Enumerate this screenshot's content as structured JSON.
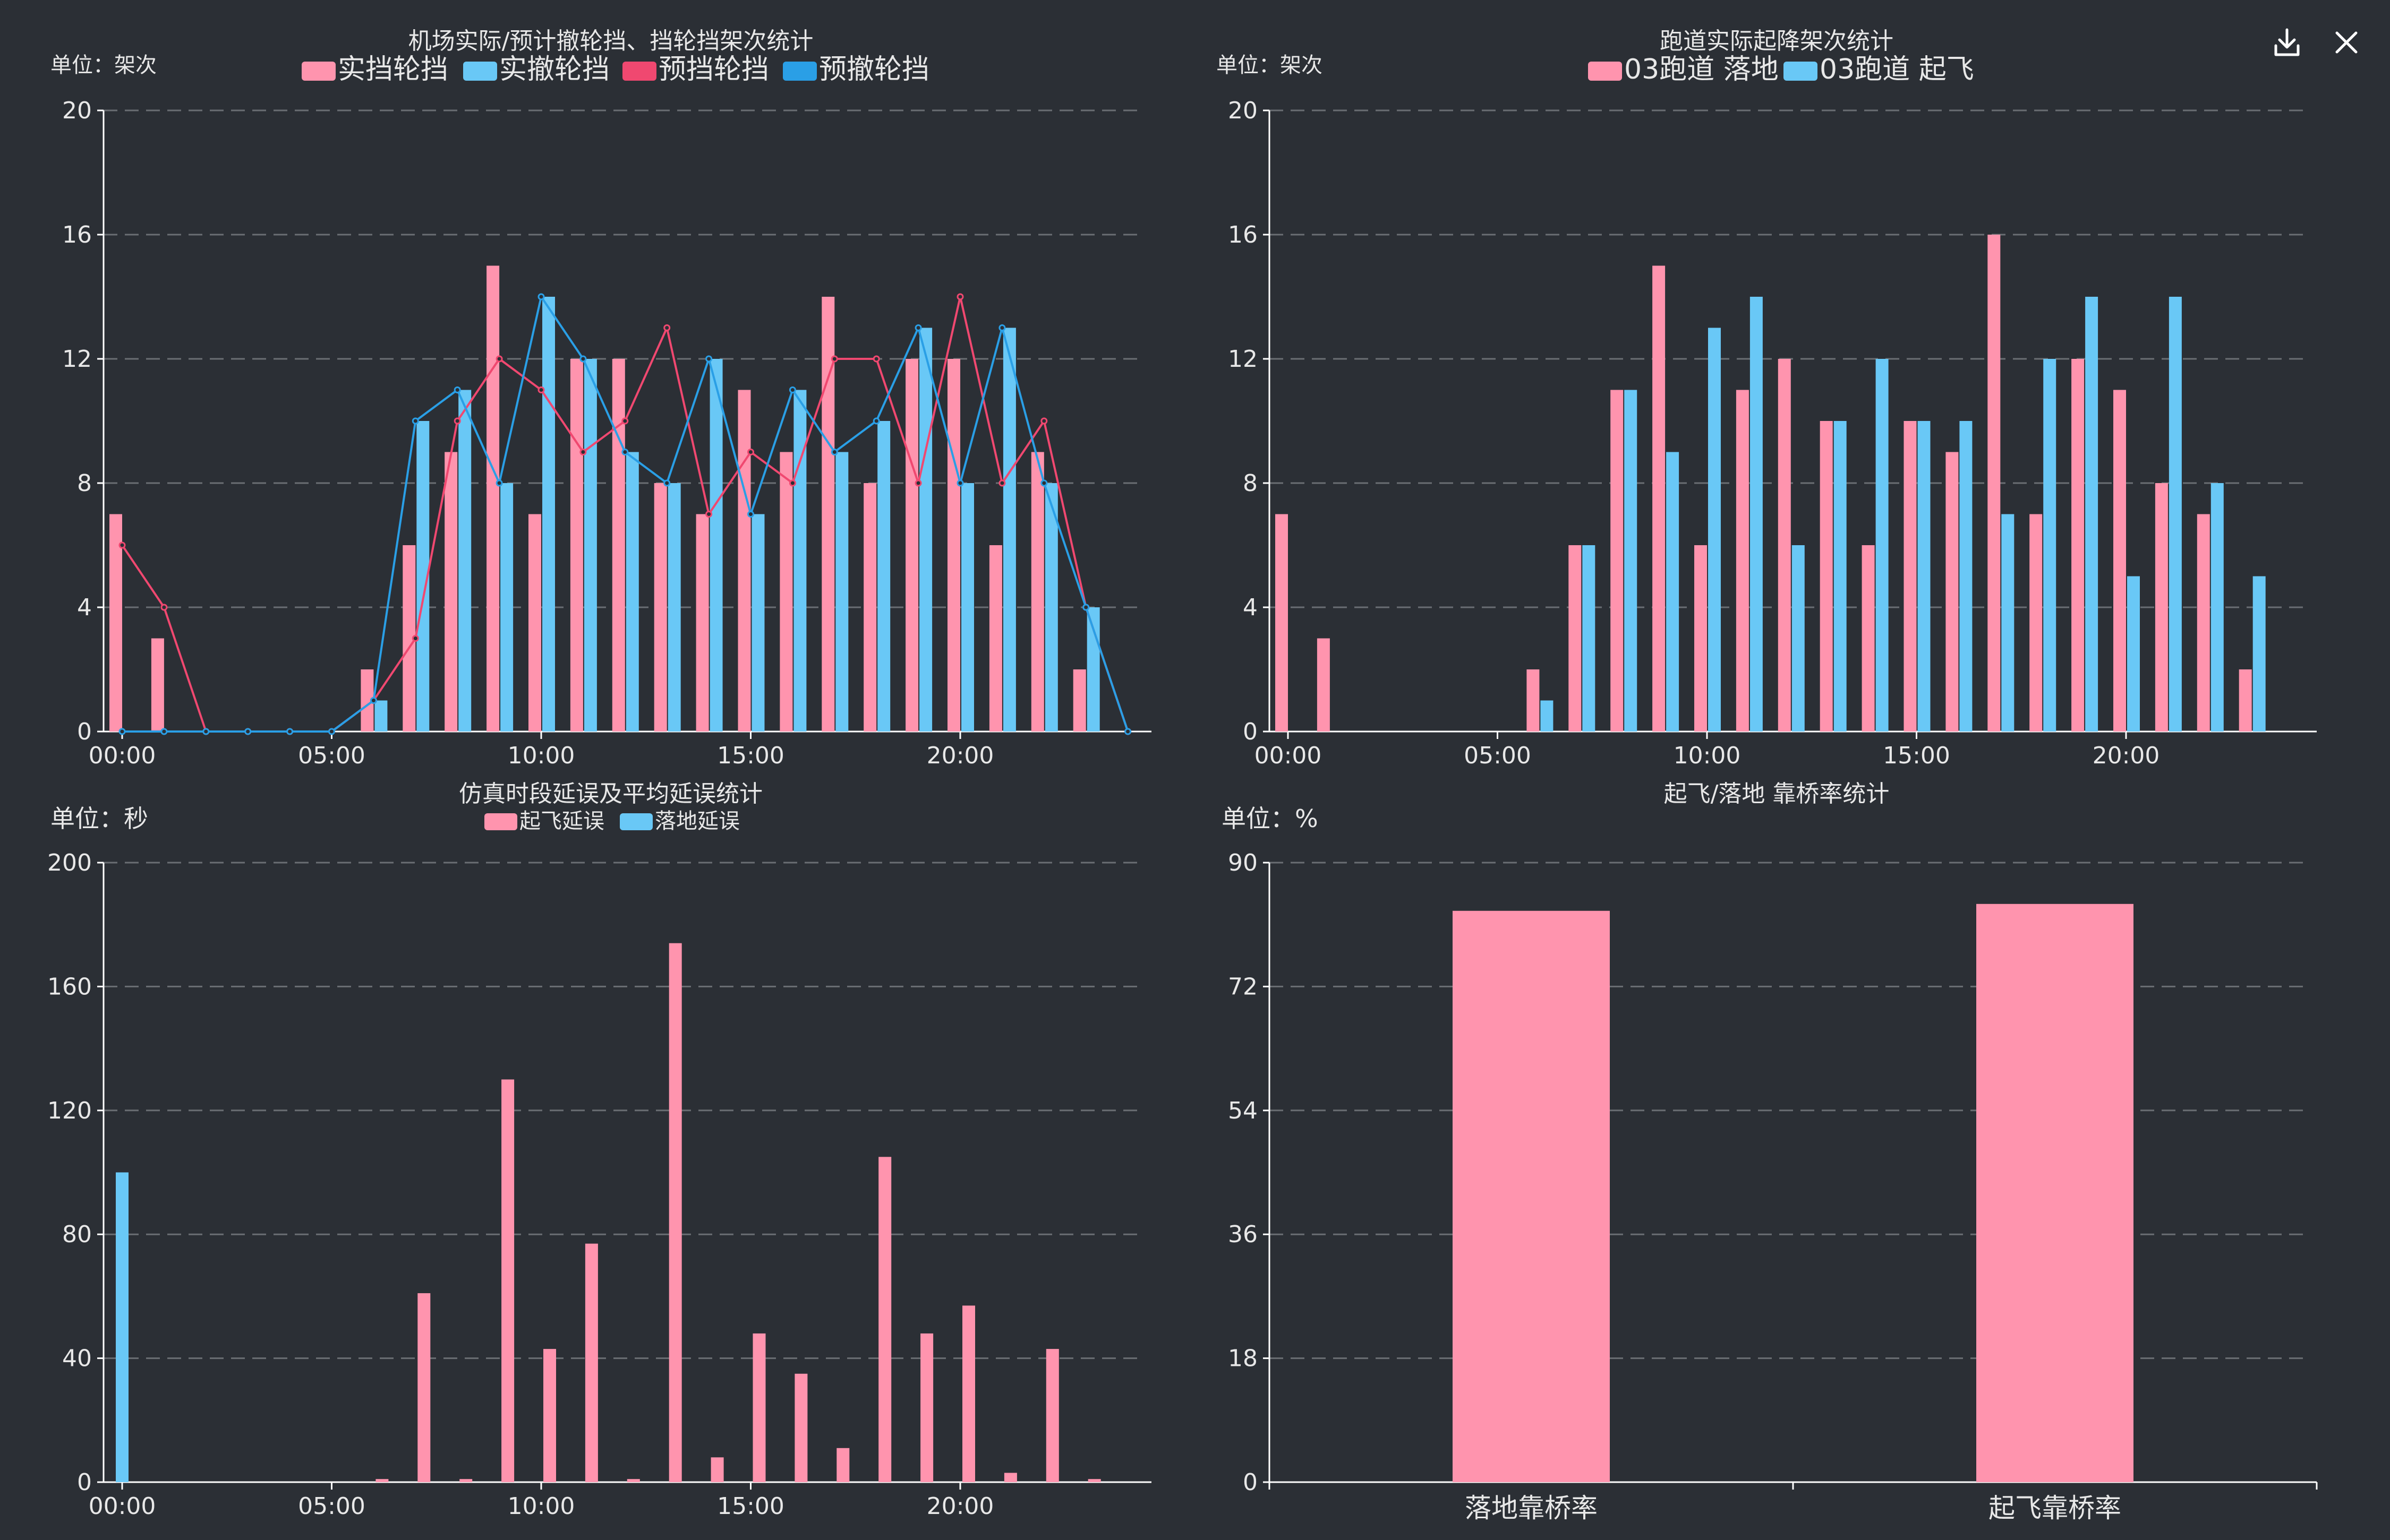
{
  "toolbar": {
    "download_icon": "download-icon",
    "close_icon": "close-icon"
  },
  "colors": {
    "pink": "#ff94ae",
    "blue": "#69c8f6",
    "red": "#f04870",
    "deepblue": "#2a9fe6",
    "bg": "#2b2f35",
    "grid": "#6a6e73",
    "axis": "#ffffff",
    "text": "#e8e8e8"
  },
  "chart_data": [
    {
      "id": "chart1",
      "type": "bar",
      "title": "机场实际/预计撤轮挡、挡轮挡架次统计",
      "unit_label": "单位：架次",
      "ylim": [
        0,
        20
      ],
      "yticks": [
        "0",
        "4",
        "8",
        "12",
        "16",
        "20"
      ],
      "xticks": [
        {
          "i": 0,
          "label": "00:00"
        },
        {
          "i": 5,
          "label": "05:00"
        },
        {
          "i": 10,
          "label": "10:00"
        },
        {
          "i": 15,
          "label": "15:00"
        },
        {
          "i": 20,
          "label": "20:00"
        }
      ],
      "categories": [
        "00:00",
        "01:00",
        "02:00",
        "03:00",
        "04:00",
        "05:00",
        "06:00",
        "07:00",
        "08:00",
        "09:00",
        "10:00",
        "11:00",
        "12:00",
        "13:00",
        "14:00",
        "15:00",
        "16:00",
        "17:00",
        "18:00",
        "19:00",
        "20:00",
        "21:00",
        "22:00",
        "23:00",
        "24:00"
      ],
      "series": [
        {
          "name": "实挡轮挡",
          "type": "bar",
          "color": "#ff94ae",
          "values": [
            7,
            3,
            0,
            0,
            0,
            0,
            2,
            6,
            9,
            15,
            7,
            12,
            12,
            8,
            7,
            11,
            9,
            14,
            8,
            12,
            12,
            6,
            9,
            2,
            0
          ]
        },
        {
          "name": "实撤轮挡",
          "type": "bar",
          "color": "#69c8f6",
          "values": [
            0,
            0,
            0,
            0,
            0,
            0,
            1,
            10,
            11,
            8,
            14,
            12,
            9,
            8,
            12,
            7,
            11,
            9,
            10,
            13,
            8,
            13,
            8,
            4,
            0
          ]
        },
        {
          "name": "预挡轮挡",
          "type": "line",
          "color": "#f04870",
          "values": [
            6,
            4,
            0,
            0,
            0,
            0,
            1,
            3,
            10,
            12,
            11,
            9,
            10,
            13,
            7,
            9,
            8,
            12,
            12,
            8,
            14,
            8,
            10,
            4,
            0
          ]
        },
        {
          "name": "预撤轮挡",
          "type": "line",
          "color": "#2a9fe6",
          "values": [
            0,
            0,
            0,
            0,
            0,
            0,
            1,
            10,
            11,
            8,
            14,
            12,
            9,
            8,
            12,
            7,
            11,
            9,
            10,
            13,
            8,
            13,
            8,
            4,
            0
          ]
        }
      ]
    },
    {
      "id": "chart2",
      "type": "bar",
      "title": "跑道实际起降架次统计",
      "unit_label": "单位：架次",
      "ylim": [
        0,
        20
      ],
      "yticks": [
        "0",
        "4",
        "8",
        "12",
        "16",
        "20"
      ],
      "xticks": [
        {
          "i": 0,
          "label": "00:00"
        },
        {
          "i": 5,
          "label": "05:00"
        },
        {
          "i": 10,
          "label": "10:00"
        },
        {
          "i": 15,
          "label": "15:00"
        },
        {
          "i": 20,
          "label": "20:00"
        }
      ],
      "categories": [
        "00:00",
        "01:00",
        "02:00",
        "03:00",
        "04:00",
        "05:00",
        "06:00",
        "07:00",
        "08:00",
        "09:00",
        "10:00",
        "11:00",
        "12:00",
        "13:00",
        "14:00",
        "15:00",
        "16:00",
        "17:00",
        "18:00",
        "19:00",
        "20:00",
        "21:00",
        "22:00",
        "23:00"
      ],
      "series": [
        {
          "name": "03跑道 落地",
          "type": "bar",
          "color": "#ff94ae",
          "values": [
            7,
            3,
            0,
            0,
            0,
            0,
            2,
            6,
            11,
            15,
            6,
            11,
            12,
            10,
            6,
            10,
            9,
            16,
            7,
            12,
            11,
            8,
            7,
            2
          ]
        },
        {
          "name": "03跑道 起飞",
          "type": "bar",
          "color": "#69c8f6",
          "values": [
            0,
            0,
            0,
            0,
            0,
            0,
            1,
            6,
            11,
            9,
            13,
            14,
            6,
            10,
            12,
            10,
            10,
            7,
            12,
            14,
            5,
            14,
            8,
            5
          ]
        }
      ]
    },
    {
      "id": "chart3",
      "type": "bar",
      "title": "仿真时段延误及平均延误统计",
      "unit_label": "单位：秒",
      "ylim": [
        0,
        200
      ],
      "yticks": [
        "0",
        "40",
        "80",
        "120",
        "160",
        "200"
      ],
      "xticks": [
        {
          "i": 0,
          "label": "00:00"
        },
        {
          "i": 5,
          "label": "05:00"
        },
        {
          "i": 10,
          "label": "10:00"
        },
        {
          "i": 15,
          "label": "15:00"
        },
        {
          "i": 20,
          "label": "20:00"
        }
      ],
      "categories": [
        "00:00",
        "01:00",
        "02:00",
        "03:00",
        "04:00",
        "05:00",
        "06:00",
        "07:00",
        "08:00",
        "09:00",
        "10:00",
        "11:00",
        "12:00",
        "13:00",
        "14:00",
        "15:00",
        "16:00",
        "17:00",
        "18:00",
        "19:00",
        "20:00",
        "21:00",
        "22:00",
        "23:00"
      ],
      "series": [
        {
          "name": "起飞延误",
          "type": "bar",
          "color": "#ff94ae",
          "values": [
            0,
            0,
            0,
            0,
            0,
            0,
            1,
            61,
            1,
            130,
            43,
            77,
            1,
            174,
            8,
            48,
            35,
            11,
            105,
            48,
            57,
            3,
            43,
            1
          ]
        },
        {
          "name": "落地延误",
          "type": "bar",
          "color": "#69c8f6",
          "values": [
            100,
            0,
            0,
            0,
            0,
            0,
            0,
            0,
            0,
            0,
            0,
            0,
            0,
            0,
            0,
            0,
            0,
            0,
            0,
            0,
            0,
            0,
            0,
            0
          ]
        }
      ]
    },
    {
      "id": "chart4",
      "type": "bar",
      "title": "起飞/落地 靠桥率统计",
      "unit_label": "单位：%",
      "ylim": [
        0,
        90
      ],
      "yticks": [
        "0",
        "18",
        "36",
        "54",
        "72",
        "90"
      ],
      "categories": [
        "落地靠桥率",
        "起飞靠桥率"
      ],
      "series": [
        {
          "name": "",
          "type": "bar",
          "color": "#ff94ae",
          "values": [
            83,
            84
          ]
        }
      ]
    }
  ]
}
